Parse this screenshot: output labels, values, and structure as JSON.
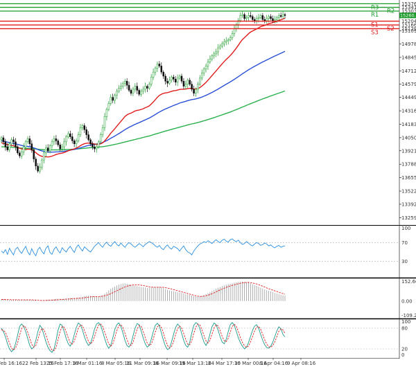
{
  "chart_data": [
    {
      "type": "candlestick",
      "panel": "price",
      "title": "",
      "ylim": [
        13200,
        15400
      ],
      "y_ticks": [
        "15376.8",
        "15341.4",
        "15303.9",
        "15260.9",
        "15204.1",
        "15166.6",
        "15129.7",
        "15109.9",
        "14978.5",
        "14845.5",
        "14712.1",
        "14579.9",
        "14449.5",
        "14316.5",
        "14183.5",
        "14050.5",
        "13921.0",
        "13788.0",
        "13655.0",
        "13522.0",
        "13392.0",
        "13259.5"
      ],
      "levels": [
        {
          "name": "R3",
          "value": 15376.8,
          "color": "#1c9b2b"
        },
        {
          "name": "R2",
          "value": 15341.4,
          "color": "#1c9b2b"
        },
        {
          "name": "R1",
          "value": 15303.9,
          "color": "#1c9b2b"
        },
        {
          "name": "S1",
          "value": 15204.1,
          "color": "#e01c1c"
        },
        {
          "name": "S2",
          "value": 15166.6,
          "color": "#e01c1c"
        },
        {
          "name": "S3",
          "value": 15129.7,
          "color": "#e01c1c"
        }
      ],
      "last_price": "15260.9",
      "closes": [
        14050,
        14010,
        13960,
        13930,
        13990,
        14030,
        14010,
        13960,
        13900,
        13870,
        13910,
        13960,
        14010,
        14040,
        13990,
        13930,
        13840,
        13770,
        13720,
        13760,
        13830,
        13900,
        13950,
        13920,
        13970,
        14010,
        14040,
        14020,
        13980,
        13940,
        13960,
        14010,
        14060,
        14090,
        14060,
        14020,
        13990,
        14020,
        14080,
        14150,
        14170,
        14130,
        14080,
        14030,
        13990,
        13960,
        13940,
        13960,
        14010,
        14080,
        14150,
        14260,
        14330,
        14390,
        14450,
        14420,
        14470,
        14510,
        14540,
        14560,
        14590,
        14610,
        14570,
        14520,
        14490,
        14530,
        14560,
        14520,
        14480,
        14510,
        14530,
        14560,
        14540,
        14580,
        14650,
        14700,
        14740,
        14780,
        14760,
        14700,
        14660,
        14610,
        14590,
        14620,
        14650,
        14630,
        14600,
        14640,
        14660,
        14610,
        14560,
        14580,
        14620,
        14580,
        14530,
        14490,
        14530,
        14580,
        14640,
        14690,
        14730,
        14760,
        14800,
        14830,
        14860,
        14880,
        14900,
        14940,
        14960,
        14980,
        15000,
        15010,
        15020,
        15040,
        15080,
        15130,
        15170,
        15210,
        15260,
        15270,
        15230,
        15240,
        15260,
        15250,
        15220,
        15210,
        15230,
        15240,
        15260,
        15220,
        15210,
        15230,
        15250,
        15230,
        15210,
        15220,
        15240,
        15260,
        15250,
        15270,
        15260
      ],
      "ma_red": [
        14000,
        13995,
        13990,
        13982,
        13978,
        13975,
        13970,
        13964,
        13955,
        13946,
        13940,
        13936,
        13935,
        13937,
        13936,
        13930,
        13918,
        13902,
        13886,
        13874,
        13866,
        13862,
        13862,
        13860,
        13863,
        13868,
        13876,
        13884,
        13890,
        13894,
        13898,
        13904,
        13912,
        13921,
        13928,
        13934,
        13940,
        13948,
        13958,
        13971,
        13983,
        13991,
        13996,
        13998,
        13996,
        13992,
        13988,
        13985,
        13985,
        13990,
        14000,
        14019,
        14042,
        14068,
        14096,
        14117,
        14140,
        14164,
        14188,
        14212,
        14236,
        14260,
        14276,
        14287,
        14294,
        14304,
        14315,
        14321,
        14324,
        14330,
        14337,
        14347,
        14355,
        14366,
        14384,
        14404,
        14426,
        14450,
        14469,
        14481,
        14489,
        14494,
        14497,
        14503,
        14510,
        14515,
        14517,
        14522,
        14528,
        14530,
        14530,
        14532,
        14537,
        14539,
        14537,
        14532,
        14532,
        14537,
        14547,
        14562,
        14579,
        14598,
        14620,
        14642,
        14666,
        14689,
        14712,
        14736,
        14759,
        14782,
        14805,
        14825,
        14844,
        14864,
        14886,
        14912,
        14938,
        14966,
        14996,
        15022,
        15041,
        15060,
        15080,
        15096,
        15107,
        15117,
        15128,
        15138,
        15150,
        15156,
        15162,
        15170,
        15179,
        15185,
        15190,
        15196,
        15203,
        15212,
        15218,
        15226,
        15232
      ],
      "ma_blue": [
        14020,
        14016,
        14012,
        14007,
        14003,
        14000,
        13996,
        13991,
        13985,
        13979,
        13974,
        13969,
        13966,
        13964,
        13961,
        13957,
        13950,
        13942,
        13933,
        13926,
        13920,
        13915,
        13912,
        13909,
        13908,
        13908,
        13909,
        13910,
        13911,
        13912,
        13914,
        13916,
        13919,
        13923,
        13927,
        13931,
        13935,
        13939,
        13944,
        13950,
        13957,
        13963,
        13969,
        13974,
        13978,
        13981,
        13984,
        13987,
        13991,
        13996,
        14003,
        14012,
        14022,
        14033,
        14045,
        14056,
        14067,
        14079,
        14091,
        14104,
        14117,
        14130,
        14142,
        14153,
        14163,
        14173,
        14183,
        14192,
        14200,
        14209,
        14218,
        14227,
        14236,
        14245,
        14256,
        14268,
        14280,
        14293,
        14305,
        14316,
        14326,
        14335,
        14343,
        14352,
        14361,
        14369,
        14377,
        14385,
        14393,
        14400,
        14405,
        14411,
        14418,
        14423,
        14428,
        14431,
        14435,
        14440,
        14446,
        14453,
        14461,
        14470,
        14479,
        14489,
        14499,
        14510,
        14521,
        14532,
        14544,
        14556,
        14568,
        14580,
        14591,
        14603,
        14615,
        14628,
        14641,
        14655,
        14669,
        14683,
        14696,
        14709,
        14722,
        14734,
        14746,
        14757,
        14768,
        14779,
        14790,
        14800,
        14810,
        14820,
        14830,
        14840,
        14850,
        14859,
        14868,
        14878,
        14887,
        14896,
        14905
      ],
      "ma_green": [
        13960,
        13960,
        13959,
        13958,
        13957,
        13956,
        13955,
        13953,
        13952,
        13950,
        13948,
        13947,
        13946,
        13945,
        13944,
        13943,
        13941,
        13939,
        13937,
        13935,
        13933,
        13932,
        13931,
        13930,
        13930,
        13930,
        13930,
        13930,
        13930,
        13931,
        13931,
        13932,
        13933,
        13934,
        13935,
        13936,
        13937,
        13938,
        13940,
        13942,
        13944,
        13946,
        13948,
        13950,
        13952,
        13953,
        13955,
        13956,
        13958,
        13960,
        13962,
        13965,
        13968,
        13972,
        13976,
        13980,
        13984,
        13988,
        13993,
        13998,
        14003,
        14008,
        14013,
        14018,
        14023,
        14028,
        14033,
        14038,
        14043,
        14048,
        14053,
        14058,
        14063,
        14068,
        14074,
        14080,
        14086,
        14092,
        14098,
        14104,
        14110,
        14116,
        14121,
        14127,
        14133,
        14138,
        14144,
        14150,
        14155,
        14161,
        14166,
        14171,
        14177,
        14182,
        14187,
        14191,
        14196,
        14201,
        14206,
        14212,
        14218,
        14224,
        14230,
        14236,
        14243,
        14249,
        14256,
        14263,
        14270,
        14277,
        14284,
        14291,
        14298,
        14305,
        14313,
        14321,
        14329,
        14337,
        14346,
        14354,
        14362,
        14371,
        14379,
        14387,
        14395,
        14403,
        14411,
        14419,
        14427,
        14434,
        14442,
        14449,
        14457,
        14464,
        14471,
        14478,
        14485,
        14492,
        14499,
        14506,
        14513
      ]
    },
    {
      "type": "line",
      "panel": "rsi",
      "ylim": [
        0,
        100
      ],
      "y_ticks": [
        "100",
        "70",
        "30"
      ],
      "levels": [
        70,
        30
      ],
      "values": [
        52,
        48,
        55,
        45,
        58,
        50,
        44,
        56,
        60,
        52,
        47,
        55,
        62,
        50,
        44,
        57,
        48,
        42,
        55,
        60,
        51,
        46,
        58,
        63,
        49,
        45,
        56,
        61,
        53,
        48,
        59,
        54,
        50,
        57,
        62,
        55,
        49,
        60,
        65,
        58,
        52,
        61,
        57,
        53,
        50,
        56,
        62,
        66,
        70,
        64,
        60,
        67,
        71,
        65,
        62,
        68,
        72,
        66,
        63,
        69,
        64,
        60,
        66,
        70,
        67,
        63,
        60,
        64,
        68,
        65,
        61,
        66,
        69,
        72,
        70,
        67,
        63,
        60,
        64,
        58,
        55,
        61,
        65,
        59,
        56,
        62,
        60,
        57,
        52,
        58,
        63,
        55,
        50,
        48,
        44,
        52,
        58,
        63,
        67,
        69,
        72,
        70,
        74,
        71,
        68,
        73,
        76,
        72,
        70,
        75,
        77,
        73,
        71,
        76,
        78,
        74,
        72,
        75,
        70,
        66,
        68,
        72,
        69,
        65,
        63,
        67,
        70,
        68,
        64,
        66,
        69,
        67,
        63,
        65,
        61,
        59,
        62,
        64,
        60,
        62,
        63
      ]
    },
    {
      "type": "bar+line",
      "panel": "macd",
      "ylim": [
        -109.25,
        152.66
      ],
      "y_ticks": [
        "152.66",
        "0.00",
        "-109.25"
      ],
      "hist": [
        12,
        14,
        13,
        10,
        8,
        9,
        10,
        11,
        9,
        7,
        6,
        8,
        10,
        12,
        11,
        9,
        6,
        3,
        1,
        2,
        4,
        6,
        8,
        9,
        10,
        12,
        14,
        16,
        17,
        16,
        15,
        16,
        18,
        20,
        22,
        23,
        22,
        21,
        23,
        26,
        30,
        34,
        37,
        38,
        37,
        35,
        33,
        32,
        33,
        36,
        42,
        52,
        64,
        76,
        88,
        96,
        104,
        112,
        118,
        122,
        125,
        126,
        124,
        120,
        115,
        112,
        110,
        107,
        103,
        100,
        98,
        97,
        95,
        94,
        96,
        98,
        100,
        102,
        101,
        97,
        92,
        86,
        80,
        76,
        73,
        70,
        66,
        63,
        61,
        58,
        54,
        50,
        48,
        45,
        41,
        36,
        33,
        32,
        34,
        38,
        44,
        50,
        57,
        64,
        72,
        80,
        88,
        95,
        101,
        107,
        112,
        117,
        120,
        123,
        127,
        131,
        134,
        137,
        139,
        140,
        138,
        135,
        131,
        126,
        120,
        114,
        108,
        102,
        96,
        90,
        84,
        78,
        73,
        68,
        63,
        58,
        54,
        50,
        46,
        43,
        40
      ],
      "signal": [
        12,
        12,
        12,
        11,
        11,
        10,
        10,
        10,
        10,
        9,
        9,
        9,
        9,
        9,
        9,
        9,
        8,
        7,
        6,
        5,
        5,
        5,
        5,
        6,
        6,
        7,
        8,
        9,
        10,
        11,
        12,
        13,
        14,
        15,
        16,
        17,
        18,
        19,
        20,
        21,
        22,
        24,
        26,
        28,
        30,
        31,
        32,
        32,
        32,
        33,
        35,
        38,
        42,
        47,
        53,
        60,
        67,
        74,
        81,
        88,
        95,
        101,
        106,
        110,
        113,
        115,
        116,
        116,
        115,
        113,
        111,
        108,
        105,
        102,
        100,
        99,
        99,
        99,
        99,
        99,
        98,
        96,
        93,
        90,
        86,
        82,
        78,
        74,
        70,
        66,
        62,
        58,
        54,
        50,
        46,
        42,
        38,
        35,
        33,
        33,
        35,
        38,
        42,
        47,
        53,
        59,
        66,
        73,
        80,
        86,
        92,
        98,
        103,
        108,
        112,
        116,
        120,
        124,
        127,
        130,
        132,
        133,
        133,
        132,
        129,
        126,
        122,
        117,
        112,
        106,
        100,
        94,
        88,
        83,
        78,
        73,
        68,
        63,
        58,
        54,
        50
      ]
    },
    {
      "type": "line",
      "panel": "stochastic",
      "ylim": [
        0,
        100
      ],
      "y_ticks": [
        "100",
        "80",
        "20",
        "0"
      ],
      "levels": [
        80,
        20
      ],
      "k": [
        80,
        70,
        55,
        35,
        20,
        12,
        18,
        35,
        60,
        85,
        92,
        85,
        70,
        50,
        30,
        20,
        25,
        45,
        70,
        88,
        80,
        60,
        40,
        25,
        15,
        10,
        20,
        45,
        75,
        92,
        88,
        70,
        50,
        35,
        28,
        40,
        62,
        82,
        95,
        90,
        75,
        55,
        40,
        30,
        35,
        55,
        78,
        92,
        96,
        88,
        70,
        50,
        32,
        22,
        30,
        52,
        76,
        90,
        95,
        85,
        66,
        45,
        30,
        25,
        35,
        58,
        80,
        93,
        90,
        72,
        52,
        35,
        25,
        30,
        48,
        70,
        88,
        94,
        86,
        66,
        45,
        28,
        18,
        22,
        40,
        62,
        82,
        92,
        85,
        65,
        45,
        30,
        25,
        40,
        66,
        88,
        96,
        92,
        78,
        58,
        40,
        30,
        42,
        64,
        84,
        95,
        90,
        74,
        55,
        40,
        35,
        48,
        70,
        90,
        96,
        88,
        70,
        52,
        38,
        28,
        20,
        25,
        38,
        56,
        74,
        86,
        90,
        80,
        62,
        45,
        32,
        24,
        22,
        28,
        40,
        56,
        72,
        84,
        78,
        62,
        55
      ],
      "d": [
        75,
        74,
        68,
        53,
        37,
        22,
        17,
        22,
        38,
        60,
        79,
        87,
        82,
        68,
        50,
        33,
        25,
        30,
        47,
        68,
        79,
        76,
        60,
        42,
        27,
        17,
        15,
        25,
        47,
        71,
        85,
        83,
        69,
        52,
        38,
        34,
        43,
        61,
        80,
        89,
        87,
        73,
        57,
        42,
        35,
        40,
        56,
        75,
        89,
        92,
        85,
        69,
        51,
        35,
        28,
        35,
        53,
        73,
        87,
        90,
        82,
        65,
        47,
        33,
        30,
        39,
        58,
        77,
        88,
        85,
        71,
        53,
        37,
        30,
        34,
        49,
        69,
        84,
        89,
        82,
        66,
        46,
        30,
        23,
        27,
        41,
        61,
        79,
        86,
        81,
        65,
        47,
        33,
        32,
        44,
        65,
        83,
        92,
        89,
        76,
        59,
        43,
        37,
        45,
        63,
        81,
        90,
        86,
        73,
        56,
        44,
        41,
        51,
        69,
        85,
        91,
        85,
        70,
        53,
        39,
        29,
        24,
        28,
        40,
        56,
        72,
        83,
        85,
        77,
        62,
        46,
        34,
        26,
        25,
        30,
        41,
        56,
        71,
        78,
        75,
        65
      ]
    }
  ],
  "x_ticks": [
    "19 Feb 16:16",
    "22 Feb 13:16",
    "25 Feb 17:16",
    "3 Mar 01:16",
    "8 Mar 05:16",
    "11 Mar 09:16",
    "16 Mar 09:16",
    "19 Mar 13:16",
    "24 Mar 17:16",
    "30 Mar 00:16",
    "6 Apr 04:16",
    "9 Apr 08:16"
  ],
  "colors": {
    "bull": "#1c9b2b",
    "bear": "#111111",
    "ma_red": "#e01c1c",
    "ma_blue": "#2a4fd6",
    "ma_green": "#29b04b",
    "rsi": "#2a8fe0",
    "macd_signal": "#e01c1c",
    "macd_hist": "#9a9a9a",
    "stoch_k": "#1a9a8a",
    "stoch_d": "#e01c1c",
    "resistance": "#1c9b2b",
    "support": "#e01c1c",
    "last_price_tag": "#1c9b2b"
  }
}
